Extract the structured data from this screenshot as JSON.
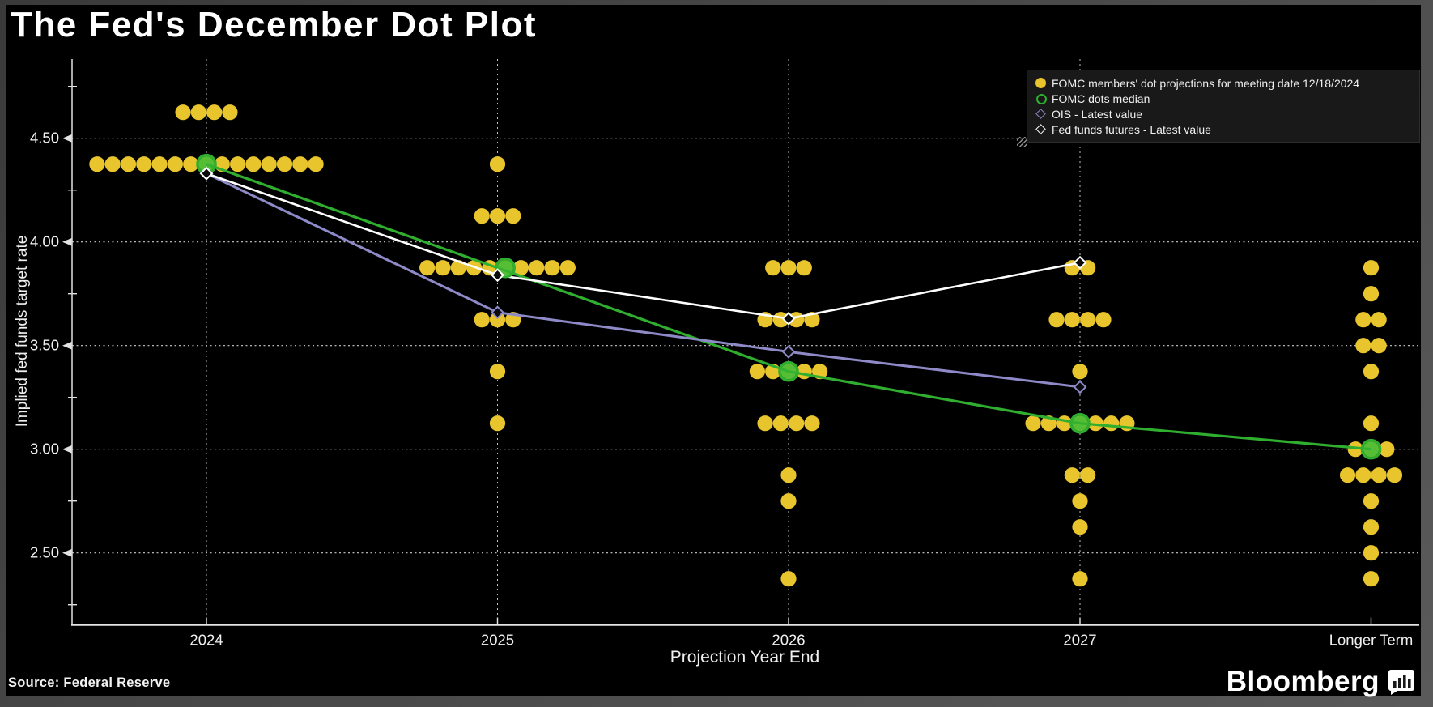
{
  "header": {
    "title": "The Fed's December Dot Plot"
  },
  "footer": {
    "source": "Source: Federal Reserve",
    "logo_text": "Bloomberg",
    "logo_icon": "bar-chart-bubble-icon"
  },
  "colors": {
    "background": "#000000",
    "frame_gray": "#4a4a4a",
    "dot_yellow": "#e8c42d",
    "median_green": "#2fae2f",
    "median_fill": "#5abe35",
    "ois_purple": "#8e8ac8",
    "futures_white": "#ffffff",
    "grid": "#cccccc",
    "axis": "#e3e3e3",
    "text": "#f0f0f0"
  },
  "chart_data": {
    "type": "scatter",
    "title": "The Fed's December Dot Plot",
    "xlabel": "Projection Year End",
    "ylabel": "Implied fed funds target rate",
    "categories": [
      "2024",
      "2025",
      "2026",
      "2027",
      "Longer Term"
    ],
    "y_ticks": [
      4.5,
      4.0,
      3.5,
      3.0,
      2.5
    ],
    "y_minor_ticks": [
      4.75,
      4.25,
      3.75,
      3.25,
      2.75,
      2.25
    ],
    "ylim": [
      2.15,
      4.87
    ],
    "grid": true,
    "legend_position": "top-right",
    "legend": [
      {
        "label": "FOMC members' dot projections for meeting date 12/18/2024",
        "marker": "filled-circle",
        "color": "#e8c42d"
      },
      {
        "label": "FOMC dots median",
        "marker": "open-circle",
        "color": "#2fae2f"
      },
      {
        "label": "OIS - Latest value",
        "marker": "open-diamond",
        "color": "#8e8ac8"
      },
      {
        "label": "Fed funds futures - Latest value",
        "marker": "open-diamond",
        "color": "#ffffff"
      }
    ],
    "dots": [
      {
        "category": "2024",
        "rows": [
          {
            "v": 4.625,
            "n": 4
          },
          {
            "v": 4.375,
            "n": 15
          }
        ]
      },
      {
        "category": "2025",
        "rows": [
          {
            "v": 4.375,
            "n": 1
          },
          {
            "v": 4.125,
            "n": 3
          },
          {
            "v": 3.875,
            "n": 10
          },
          {
            "v": 3.625,
            "n": 3
          },
          {
            "v": 3.375,
            "n": 1
          },
          {
            "v": 3.125,
            "n": 1
          }
        ]
      },
      {
        "category": "2026",
        "rows": [
          {
            "v": 3.875,
            "n": 3
          },
          {
            "v": 3.625,
            "n": 4
          },
          {
            "v": 3.375,
            "n": 5
          },
          {
            "v": 3.125,
            "n": 4
          },
          {
            "v": 2.875,
            "n": 1
          },
          {
            "v": 2.75,
            "n": 1
          },
          {
            "v": 2.375,
            "n": 1
          }
        ]
      },
      {
        "category": "2027",
        "rows": [
          {
            "v": 3.875,
            "n": 2
          },
          {
            "v": 3.625,
            "n": 4
          },
          {
            "v": 3.375,
            "n": 1
          },
          {
            "v": 3.125,
            "n": 7
          },
          {
            "v": 2.875,
            "n": 2
          },
          {
            "v": 2.75,
            "n": 1
          },
          {
            "v": 2.625,
            "n": 1
          },
          {
            "v": 2.375,
            "n": 1
          }
        ]
      },
      {
        "category": "Longer Term",
        "rows": [
          {
            "v": 3.875,
            "n": 1
          },
          {
            "v": 3.75,
            "n": 1
          },
          {
            "v": 3.625,
            "n": 2
          },
          {
            "v": 3.5,
            "n": 2
          },
          {
            "v": 3.375,
            "n": 1
          },
          {
            "v": 3.125,
            "n": 1
          },
          {
            "v": 3.0,
            "n": 3
          },
          {
            "v": 2.875,
            "n": 4
          },
          {
            "v": 2.75,
            "n": 1
          },
          {
            "v": 2.625,
            "n": 1
          },
          {
            "v": 2.5,
            "n": 1
          },
          {
            "v": 2.375,
            "n": 1
          }
        ]
      }
    ],
    "series": [
      {
        "name": "FOMC dots median",
        "marker": "open-circle",
        "color": "#2fae2f",
        "x": [
          "2024",
          "2025",
          "2026",
          "2027",
          "Longer Term"
        ],
        "values": [
          4.375,
          3.875,
          3.375,
          3.125,
          3.0
        ]
      },
      {
        "name": "OIS - Latest value",
        "marker": "open-diamond",
        "color": "#8e8ac8",
        "x": [
          "2024",
          "2025",
          "2026",
          "2027"
        ],
        "values": [
          4.33,
          3.66,
          3.47,
          3.3
        ]
      },
      {
        "name": "Fed funds futures - Latest value",
        "marker": "open-diamond",
        "color": "#ffffff",
        "x": [
          "2024",
          "2025",
          "2026",
          "2027"
        ],
        "values": [
          4.33,
          3.84,
          3.63,
          3.9
        ]
      }
    ]
  }
}
